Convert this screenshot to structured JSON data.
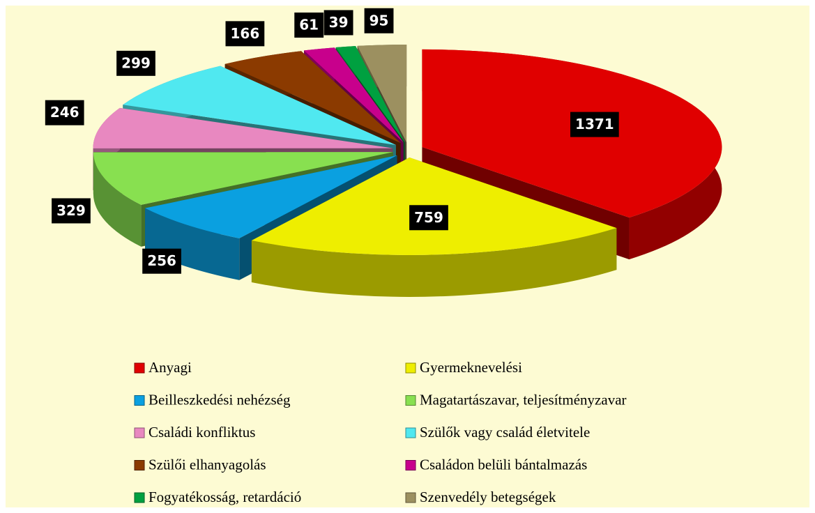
{
  "chart_data": {
    "type": "pie",
    "categories": [
      "Anyagi",
      "Gyermeknevelési",
      "Beilleszkedési nehézség",
      "Magatartászavar, teljesítményzavar",
      "Családi konfliktus",
      "Szülők vagy család életvitele",
      "Szülői elhanyagolás",
      "Családon belüli bántalmazás",
      "Fogyatékosság, retardáció",
      "Szenvedély betegségek"
    ],
    "values": [
      1371,
      759,
      256,
      329,
      246,
      299,
      166,
      61,
      39,
      95
    ],
    "colors": [
      "#e00000",
      "#eeee00",
      "#0aa0e0",
      "#88e050",
      "#e888c0",
      "#50e8f0",
      "#8b3a00",
      "#c8008c",
      "#00a040",
      "#9c9060"
    ],
    "legend": "bottom"
  }
}
